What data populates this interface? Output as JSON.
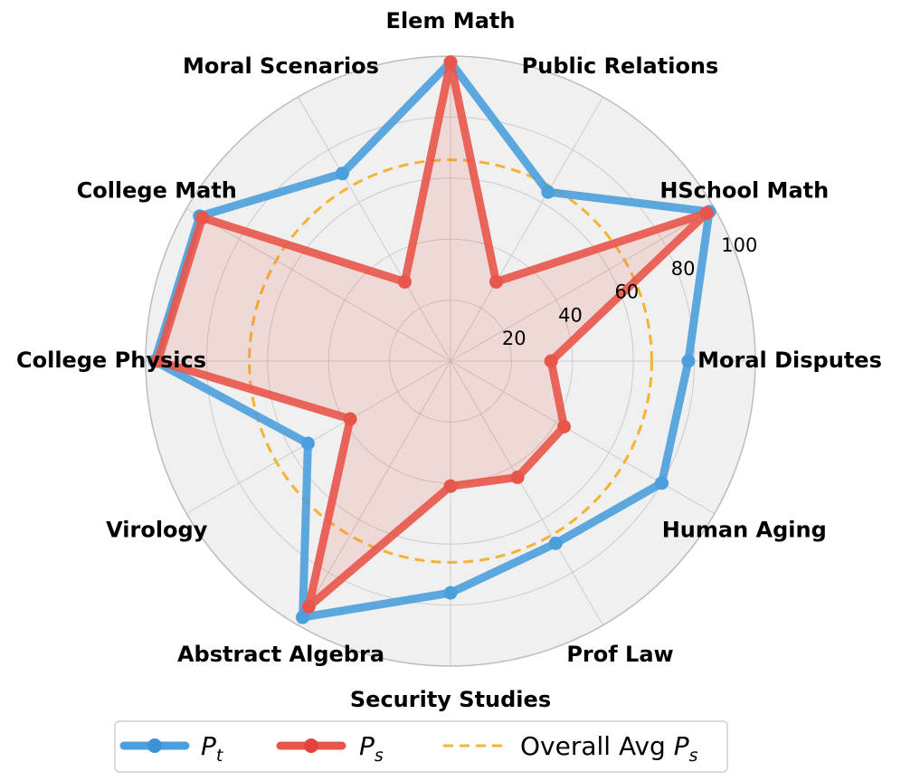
{
  "chart_data": {
    "type": "radar",
    "categories": [
      "Moral Disputes",
      "HSchool Math",
      "Public Relations",
      "Elem Math",
      "Moral Scenarios",
      "College Math",
      "College Physics",
      "Virology",
      "Abstract Algebra",
      "Security Studies",
      "Prof Law",
      "Human Aging"
    ],
    "series": [
      {
        "name": "P_t",
        "values": [
          78,
          98,
          64,
          98,
          71,
          95,
          97,
          54,
          97,
          76,
          69,
          80
        ],
        "color": "#4a9fdc"
      },
      {
        "name": "P_s",
        "values": [
          33,
          97,
          30,
          98,
          30,
          94,
          96,
          38,
          93,
          41,
          44,
          43
        ],
        "color": "#e8554a"
      }
    ],
    "reference": {
      "name": "Overall Avg P_s",
      "value": 66,
      "color": "#f5b335"
    },
    "rlim": [
      0,
      100
    ],
    "rticks": [
      20,
      40,
      60,
      80,
      100
    ],
    "grid": true,
    "legend_position": "bottom"
  },
  "legend": {
    "pt_main": "P",
    "pt_sub": "t",
    "ps_main": "P",
    "ps_sub": "s",
    "avg_prefix": "Overall Avg ",
    "avg_main": "P",
    "avg_sub": "s"
  }
}
